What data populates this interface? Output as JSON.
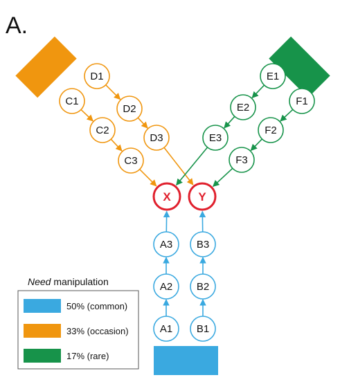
{
  "panel_label": "A.",
  "colors": {
    "blue": "#3aa9e0",
    "orange": "#f0960f",
    "green": "#17934a",
    "red": "#e0202d",
    "text": "#111111",
    "legend_border": "#555555"
  },
  "nodes": {
    "A1": "A1",
    "A2": "A2",
    "A3": "A3",
    "B1": "B1",
    "B2": "B2",
    "B3": "B3",
    "C1": "C1",
    "C2": "C2",
    "C3": "C3",
    "D1": "D1",
    "D2": "D2",
    "D3": "D3",
    "E1": "E1",
    "E2": "E2",
    "E3": "E3",
    "F1": "F1",
    "F2": "F2",
    "F3": "F3"
  },
  "targets": {
    "X": "X",
    "Y": "Y"
  },
  "edges": [
    [
      "A1",
      "A2",
      "blue"
    ],
    [
      "A2",
      "A3",
      "blue"
    ],
    [
      "A3",
      "X",
      "blue"
    ],
    [
      "B1",
      "B2",
      "blue"
    ],
    [
      "B2",
      "B3",
      "blue"
    ],
    [
      "B3",
      "Y",
      "blue"
    ],
    [
      "C1",
      "C2",
      "orange"
    ],
    [
      "C2",
      "C3",
      "orange"
    ],
    [
      "C3",
      "X",
      "orange"
    ],
    [
      "D1",
      "D2",
      "orange"
    ],
    [
      "D2",
      "D3",
      "orange"
    ],
    [
      "D3",
      "Y",
      "orange"
    ],
    [
      "E1",
      "E2",
      "green"
    ],
    [
      "E2",
      "E3",
      "green"
    ],
    [
      "E3",
      "X",
      "green"
    ],
    [
      "F1",
      "F2",
      "green"
    ],
    [
      "F2",
      "F3",
      "green"
    ],
    [
      "F3",
      "Y",
      "green"
    ]
  ],
  "legend": {
    "title_italic": "Need",
    "title_rest": " manipulation",
    "items": [
      {
        "label": "50% (common)",
        "color": "blue"
      },
      {
        "label": "33% (occasion)",
        "color": "orange"
      },
      {
        "label": "17% (rare)",
        "color": "green"
      }
    ]
  }
}
